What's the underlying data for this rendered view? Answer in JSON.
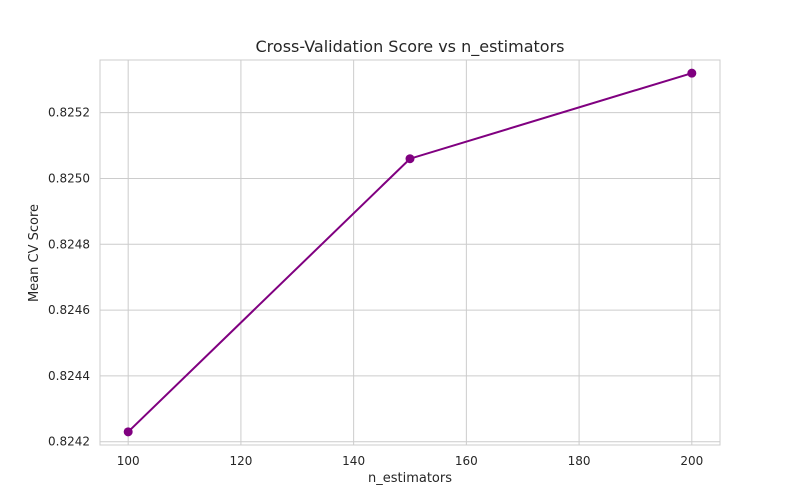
{
  "chart_data": {
    "type": "line",
    "title": "Cross-Validation Score vs n_estimators",
    "xlabel": "n_estimators",
    "ylabel": "Mean CV Score",
    "x": [
      100,
      150,
      200
    ],
    "series": [
      {
        "values": [
          0.82423,
          0.82506,
          0.82532
        ],
        "color": "#800080",
        "marker": "circle"
      }
    ],
    "xlim": [
      95,
      205
    ],
    "ylim": [
      0.82419,
      0.82536
    ],
    "xticks": [
      100,
      120,
      140,
      160,
      180,
      200
    ],
    "xtick_labels": [
      "100",
      "120",
      "140",
      "160",
      "180",
      "200"
    ],
    "yticks": [
      0.8242,
      0.8244,
      0.8246,
      0.8248,
      0.825,
      0.8252
    ],
    "ytick_labels": [
      "0.8242",
      "0.8244",
      "0.8246",
      "0.8248",
      "0.8250",
      "0.8252"
    ],
    "grid": true,
    "style": {
      "grid_color": "#cccccc",
      "frame_color": "#cccccc",
      "text_color": "#262626"
    }
  }
}
